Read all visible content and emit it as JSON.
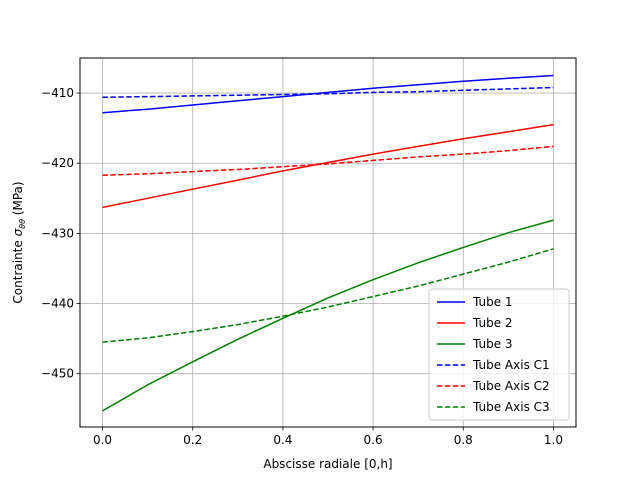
{
  "chart_data": {
    "type": "line",
    "title": "",
    "xlabel": "Abscisse radiale [0,h]",
    "ylabel_prefix": "Contrainte ",
    "ylabel_symbol": "σ",
    "ylabel_subscript": "θθ",
    "ylabel_suffix": " (MPa)",
    "xlim": [
      -0.05,
      1.05
    ],
    "ylim": [
      -457.6,
      -405.0
    ],
    "xticks": [
      0.0,
      0.2,
      0.4,
      0.6,
      0.8,
      1.0
    ],
    "xtick_labels": [
      "0.0",
      "0.2",
      "0.4",
      "0.6",
      "0.8",
      "1.0"
    ],
    "yticks": [
      -410,
      -420,
      -430,
      -440,
      -450
    ],
    "ytick_labels": [
      "−410",
      "−420",
      "−430",
      "−440",
      "−450"
    ],
    "grid": true,
    "legend_position": "lower-right",
    "series": [
      {
        "name": "Tube 1",
        "color": "#0000ff",
        "style": "solid",
        "x": [
          0.0,
          0.1,
          0.2,
          0.3,
          0.4,
          0.5,
          0.6,
          0.7,
          0.8,
          0.9,
          1.0
        ],
        "y": [
          -412.8,
          -412.3,
          -411.7,
          -411.1,
          -410.5,
          -409.9,
          -409.3,
          -408.8,
          -408.3,
          -407.9,
          -407.5
        ]
      },
      {
        "name": "Tube 2",
        "color": "#ff0000",
        "style": "solid",
        "x": [
          0.0,
          0.1,
          0.2,
          0.3,
          0.4,
          0.5,
          0.6,
          0.7,
          0.8,
          0.9,
          1.0
        ],
        "y": [
          -426.3,
          -425.0,
          -423.7,
          -422.4,
          -421.1,
          -419.9,
          -418.7,
          -417.6,
          -416.5,
          -415.5,
          -414.5
        ]
      },
      {
        "name": "Tube 3",
        "color": "#008000",
        "style": "solid",
        "x": [
          0.0,
          0.1,
          0.2,
          0.3,
          0.4,
          0.5,
          0.6,
          0.7,
          0.8,
          0.9,
          1.0
        ],
        "y": [
          -455.3,
          -451.6,
          -448.3,
          -445.1,
          -442.1,
          -439.2,
          -436.6,
          -434.2,
          -432.0,
          -429.9,
          -428.1
        ]
      },
      {
        "name": "Tube Axis C1",
        "color": "#0000ff",
        "style": "dashed",
        "x": [
          0.0,
          0.1,
          0.2,
          0.3,
          0.4,
          0.5,
          0.6,
          0.7,
          0.8,
          0.9,
          1.0
        ],
        "y": [
          -410.6,
          -410.5,
          -410.4,
          -410.3,
          -410.2,
          -410.1,
          -409.9,
          -409.8,
          -409.6,
          -409.4,
          -409.2
        ]
      },
      {
        "name": "Tube Axis C2",
        "color": "#ff0000",
        "style": "dashed",
        "x": [
          0.0,
          0.1,
          0.2,
          0.3,
          0.4,
          0.5,
          0.6,
          0.7,
          0.8,
          0.9,
          1.0
        ],
        "y": [
          -421.7,
          -421.5,
          -421.2,
          -420.9,
          -420.5,
          -420.1,
          -419.6,
          -419.1,
          -418.7,
          -418.2,
          -417.6
        ]
      },
      {
        "name": "Tube Axis C3",
        "color": "#008000",
        "style": "dashed",
        "x": [
          0.0,
          0.1,
          0.2,
          0.3,
          0.4,
          0.5,
          0.6,
          0.7,
          0.8,
          0.9,
          1.0
        ],
        "y": [
          -445.5,
          -444.9,
          -444.0,
          -443.0,
          -441.8,
          -440.5,
          -439.0,
          -437.5,
          -435.8,
          -434.1,
          -432.2
        ]
      }
    ]
  }
}
